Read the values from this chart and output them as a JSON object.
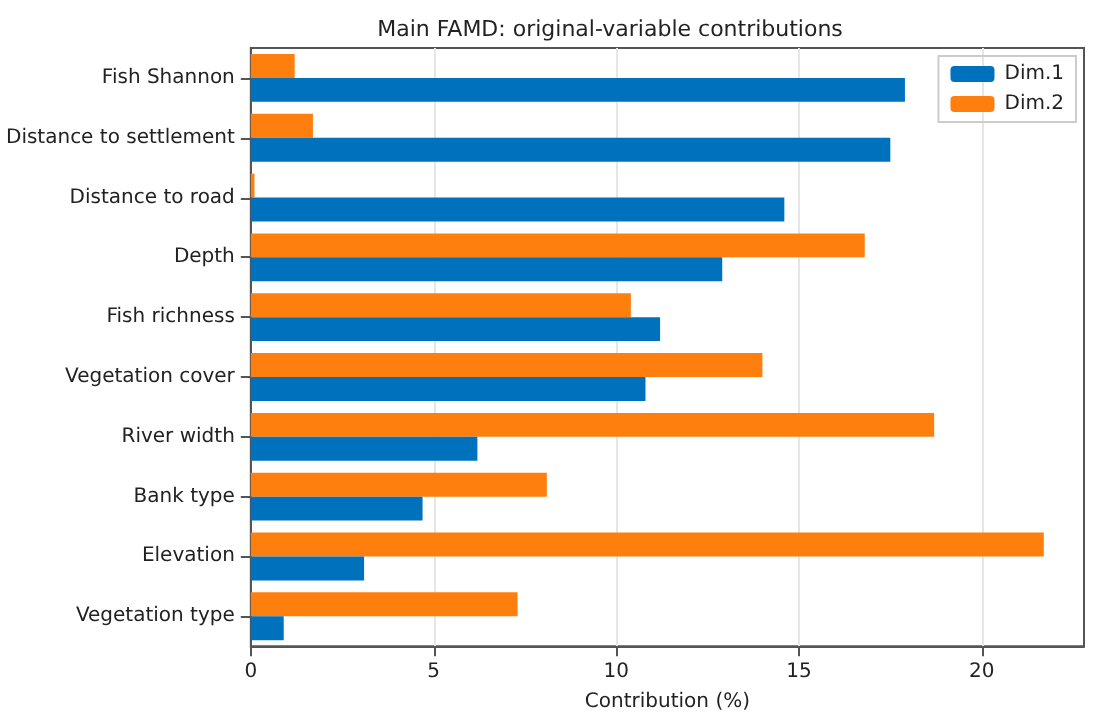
{
  "chart_data": {
    "type": "bar",
    "orientation": "horizontal",
    "title": "Main FAMD: original-variable contributions",
    "xlabel": "Contribution (%)",
    "categories": [
      "Fish Shannon",
      "Distance to settlement",
      "Distance to road",
      "Depth",
      "Fish richness",
      "Vegetation cover",
      "River width",
      "Bank type",
      "Elevation",
      "Vegetation type"
    ],
    "series": [
      {
        "name": "Dim.1",
        "color": "#0072bd",
        "values": [
          17.9,
          17.5,
          14.6,
          12.9,
          11.2,
          10.8,
          6.2,
          4.7,
          3.1,
          0.9
        ]
      },
      {
        "name": "Dim.2",
        "color": "#ff7f0e",
        "values": [
          1.2,
          1.7,
          0.1,
          16.8,
          10.4,
          14.0,
          18.7,
          8.1,
          21.7,
          7.3
        ]
      }
    ],
    "xlim": [
      0,
      22.8
    ],
    "xticks": [
      0,
      5,
      10,
      15,
      20
    ],
    "grid": "x",
    "legend": "top right"
  }
}
